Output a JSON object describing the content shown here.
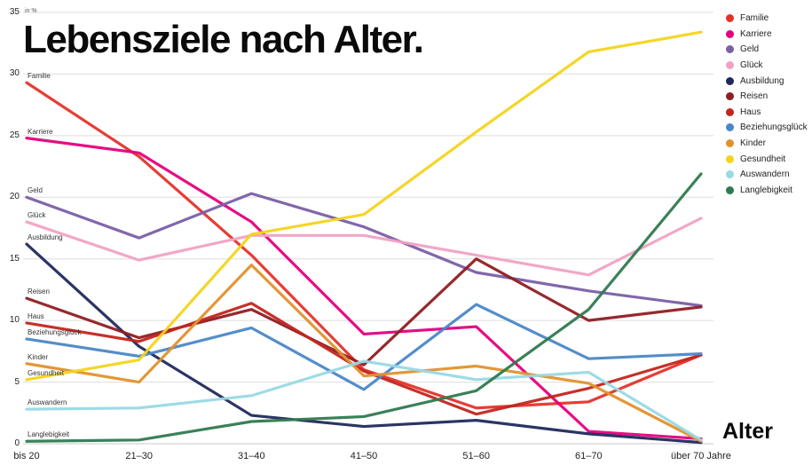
{
  "title": "Lebensziele nach Alter.",
  "axis": {
    "y_unit_label": "in %",
    "x_axis_label": "Alter",
    "y_ticks": [
      0,
      5,
      10,
      15,
      20,
      25,
      30,
      35
    ],
    "x_categories": [
      "bis 20",
      "21–30",
      "31–40",
      "41–50",
      "51–60",
      "61–70",
      "über 70 Jahre"
    ]
  },
  "colors": {
    "grid": "#dedede",
    "baseline": "#c9c9c9",
    "title_text": "#0a0a0a"
  },
  "chart_data": {
    "type": "line",
    "title": "Lebensziele nach Alter.",
    "xlabel": "Alter",
    "ylabel": "in %",
    "ylim": [
      0,
      35
    ],
    "grid": "horizontal",
    "legend_position": "top-right",
    "categories": [
      "bis 20",
      "21–30",
      "31–40",
      "41–50",
      "51–60",
      "61–70",
      "über 70 Jahre"
    ],
    "series": [
      {
        "name": "Familie",
        "color": "#e5332a",
        "values": [
          29.3,
          23.3,
          15.3,
          6.0,
          2.9,
          3.4,
          7.2
        ]
      },
      {
        "name": "Karriere",
        "color": "#e5007d",
        "values": [
          24.8,
          23.6,
          18.0,
          8.9,
          9.5,
          1.0,
          0.4
        ]
      },
      {
        "name": "Geld",
        "color": "#7a5fa5",
        "values": [
          20.0,
          16.7,
          20.3,
          17.6,
          13.9,
          12.4,
          11.2
        ]
      },
      {
        "name": "Glück",
        "color": "#f1a2c3",
        "values": [
          18.0,
          14.9,
          16.9,
          16.9,
          15.3,
          13.7,
          18.3
        ]
      },
      {
        "name": "Ausbildung",
        "color": "#20295c",
        "values": [
          16.2,
          7.9,
          2.3,
          1.4,
          1.9,
          0.8,
          0.1
        ]
      },
      {
        "name": "Reisen",
        "color": "#8f1d22",
        "values": [
          11.8,
          8.6,
          10.9,
          6.4,
          15.0,
          10.0,
          11.1
        ]
      },
      {
        "name": "Haus",
        "color": "#c3251d",
        "values": [
          9.8,
          8.3,
          11.4,
          5.9,
          2.4,
          4.5,
          7.2
        ]
      },
      {
        "name": "Beziehungsglück",
        "color": "#4b87c7",
        "values": [
          8.5,
          7.1,
          9.4,
          4.4,
          11.3,
          6.9,
          7.3
        ]
      },
      {
        "name": "Kinder",
        "color": "#e1912c",
        "values": [
          6.5,
          5.0,
          14.5,
          5.5,
          6.3,
          4.9,
          0.2
        ]
      },
      {
        "name": "Gesundheit",
        "color": "#f4d41c",
        "values": [
          5.2,
          6.8,
          17.0,
          18.6,
          25.3,
          31.8,
          33.4
        ]
      },
      {
        "name": "Auswandern",
        "color": "#98d9e4",
        "values": [
          2.8,
          2.9,
          3.9,
          6.7,
          5.2,
          5.8,
          0.3
        ]
      },
      {
        "name": "Langlebigkeit",
        "color": "#2f7a50",
        "values": [
          0.2,
          0.3,
          1.8,
          2.2,
          4.3,
          10.9,
          21.9
        ]
      }
    ]
  }
}
